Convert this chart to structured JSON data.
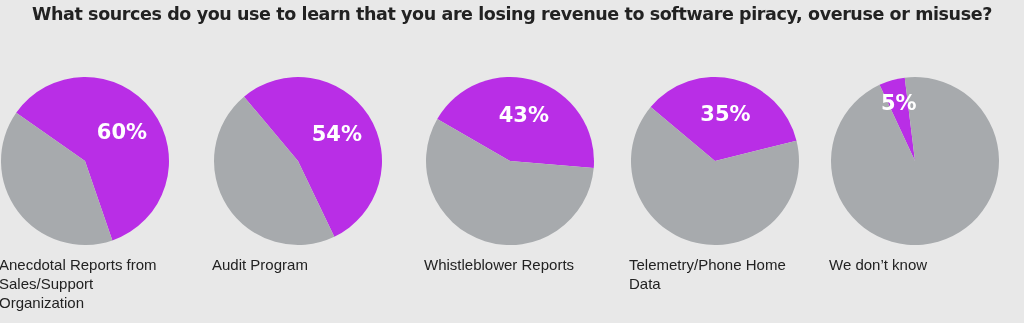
{
  "chart_data": [
    {
      "type": "pie",
      "title": "What sources do you use to learn that you are losing revenue to software piracy, overuse or misuse?",
      "categories": [
        null,
        null
      ],
      "values": [
        60,
        40
      ],
      "colors": [
        "#b92ee6",
        "#a7aaad"
      ],
      "value_labels": [
        "60%",
        null
      ],
      "annotations": [
        "Anecdotal Reports from Sales/Support Organization"
      ]
    },
    {
      "type": "pie",
      "categories": [
        null,
        null
      ],
      "values": [
        54,
        46
      ],
      "colors": [
        "#b92ee6",
        "#a7aaad"
      ],
      "value_labels": [
        "54%",
        null
      ],
      "annotations": [
        "Audit Program"
      ]
    },
    {
      "type": "pie",
      "categories": [
        null,
        null
      ],
      "values": [
        43,
        57
      ],
      "colors": [
        "#b92ee6",
        "#a7aaad"
      ],
      "value_labels": [
        "43%",
        null
      ],
      "annotations": [
        "Whistleblower Reports"
      ]
    },
    {
      "type": "pie",
      "categories": [
        null,
        null
      ],
      "values": [
        35,
        65
      ],
      "colors": [
        "#b92ee6",
        "#a7aaad"
      ],
      "value_labels": [
        "35%",
        null
      ],
      "annotations": [
        "Telemetry/Phone Home Data"
      ]
    },
    {
      "type": "pie",
      "categories": [
        null,
        null
      ],
      "values": [
        5,
        95
      ],
      "colors": [
        "#b92ee6",
        "#a7aaad"
      ],
      "value_labels": [
        "5%",
        null
      ],
      "annotations": [
        "We don’t know"
      ]
    }
  ]
}
